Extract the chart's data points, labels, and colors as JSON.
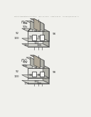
{
  "bg_color": "#f0f0ec",
  "header_text": "Patent Application Publication    May 13, 2014    Sheet 8 of 12    US 2014/0131476 A1",
  "fig_a_label": "FIG.  8A",
  "fig_b_label": "FIG.  8B",
  "lc": "#404040",
  "tc": "#303030",
  "label_fontsize": 2.8,
  "title_fontsize": 3.5,
  "c_white": "#f8f8f6",
  "c_vlight": "#e8e8e4",
  "c_light": "#d0d0ca",
  "c_mid": "#b0b0a8",
  "c_dark": "#888882",
  "c_stripe": "#c0beb4",
  "c_hatch": "#a0a098",
  "c_gate": "#c8c4b8",
  "c_gate_top": "#989088",
  "c_gate_right": "#b0a898"
}
